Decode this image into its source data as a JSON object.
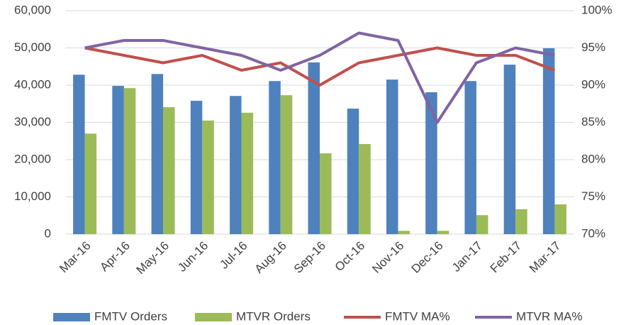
{
  "chart_data": {
    "type": "bar",
    "categories": [
      "Mar-16",
      "Apr-16",
      "May-16",
      "Jun-16",
      "Jul-16",
      "Aug-16",
      "Sep-16",
      "Oct-16",
      "Nov-16",
      "Dec-16",
      "Jan-17",
      "Feb-17",
      "Mar-17"
    ],
    "series": [
      {
        "name": "FMTV Orders",
        "type": "bar",
        "color": "#4f81bd",
        "values": [
          42800,
          39800,
          43000,
          35800,
          37100,
          41100,
          46100,
          33700,
          41500,
          38100,
          41100,
          45500,
          49900
        ]
      },
      {
        "name": "MTVR Orders",
        "type": "bar",
        "color": "#9bbb59",
        "values": [
          27000,
          39200,
          34100,
          30500,
          32600,
          37300,
          21700,
          24200,
          900,
          900,
          5100,
          6700,
          8000
        ]
      },
      {
        "name": "FMTV MA%",
        "type": "line",
        "axis": "y2",
        "color": "#c0504d",
        "values": [
          95,
          94,
          93,
          94,
          92,
          93,
          90,
          93,
          94,
          95,
          94,
          94,
          92
        ]
      },
      {
        "name": "MTVR MA%",
        "type": "line",
        "axis": "y2",
        "color": "#8064a2",
        "values": [
          95,
          96,
          96,
          95,
          94,
          92,
          94,
          97,
          96,
          85,
          93,
          95,
          94
        ]
      }
    ],
    "ylim": [
      0,
      60000
    ],
    "yticks": [
      {
        "value": 0,
        "label": "0"
      },
      {
        "value": 10000,
        "label": "10,000"
      },
      {
        "value": 20000,
        "label": "20,000"
      },
      {
        "value": 30000,
        "label": "30,000"
      },
      {
        "value": 40000,
        "label": "40,000"
      },
      {
        "value": 50000,
        "label": "50,000"
      },
      {
        "value": 60000,
        "label": "60,000"
      }
    ],
    "y2lim": [
      70,
      100
    ],
    "y2ticks": [
      {
        "value": 70,
        "label": "70%"
      },
      {
        "value": 75,
        "label": "75%"
      },
      {
        "value": 80,
        "label": "80%"
      },
      {
        "value": 85,
        "label": "85%"
      },
      {
        "value": 90,
        "label": "90%"
      },
      {
        "value": 95,
        "label": "95%"
      },
      {
        "value": 100,
        "label": "100%"
      }
    ],
    "grid": true,
    "legend": "bottom"
  }
}
